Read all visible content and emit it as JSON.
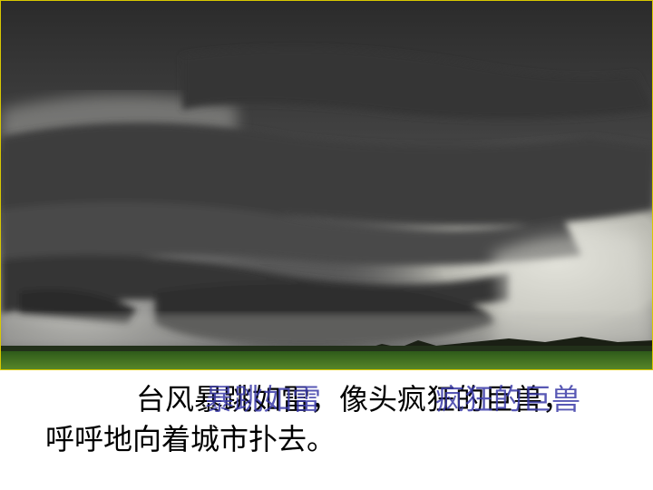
{
  "caption": {
    "line1": "台风暴跳如雷，像头疯狂的巨兽，",
    "line2": "呼呼地向着城市扑去。",
    "highlights": [
      "暴跳如雷",
      "疯狂的巨兽"
    ],
    "highlight_color": "#3a3aa8"
  },
  "photo": {
    "subject": "supercell storm cloud over green field"
  }
}
